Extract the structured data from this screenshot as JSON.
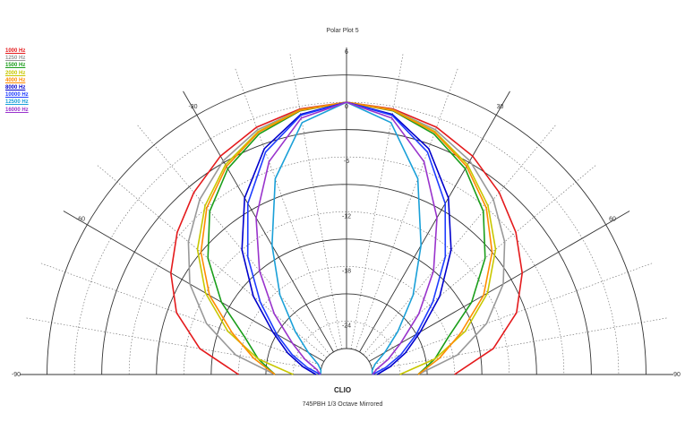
{
  "chart_data": {
    "type": "polar",
    "title": "Polar Plot 5",
    "brand": "CLIO",
    "caption": "745PBH   1/3 Octave   Mirrored",
    "mirrored": true,
    "angle_range_deg": [
      -90,
      90
    ],
    "angle_ticks": [
      "-90",
      "-60",
      "-30",
      "0",
      "30",
      "60",
      "90"
    ],
    "radial_range_db": [
      -27,
      6
    ],
    "radial_ticks": [
      "6",
      "0",
      "-6",
      "-12",
      "-18",
      "-24"
    ],
    "legend_position": "top-left",
    "angles_deg": [
      0,
      10,
      20,
      30,
      40,
      50,
      60,
      70,
      80,
      90
    ],
    "series": [
      {
        "name": "1000 Hz",
        "color": "#e41a1c",
        "values_db": [
          0,
          -0.3,
          -1.0,
          -2.2,
          -3.8,
          -5.6,
          -7.6,
          -10.0,
          -13.5,
          -18.0
        ]
      },
      {
        "name": "1250 Hz",
        "color": "#999999",
        "values_db": [
          0,
          -0.4,
          -1.3,
          -2.8,
          -4.8,
          -7.2,
          -10.0,
          -13.5,
          -17.5,
          -22.0
        ]
      },
      {
        "name": "1500 Hz",
        "color": "#1a9e1a",
        "values_db": [
          0,
          -0.5,
          -1.8,
          -3.8,
          -6.5,
          -10.0,
          -14.0,
          -18.0,
          -20.0,
          -22.0
        ]
      },
      {
        "name": "2000 Hz",
        "color": "#c8c800",
        "values_db": [
          0,
          -0.4,
          -1.5,
          -3.3,
          -5.7,
          -8.5,
          -12.0,
          -16.0,
          -20.0,
          -24.0
        ]
      },
      {
        "name": "4000 Hz",
        "color": "#ff8c00",
        "values_db": [
          0,
          -0.45,
          -1.6,
          -3.5,
          -6.0,
          -9.0,
          -12.5,
          -16.5,
          -19.5,
          -22.0
        ]
      },
      {
        "name": "8000 Hz",
        "color": "#0000cc",
        "values_db": [
          0,
          -0.9,
          -3.5,
          -7.5,
          -12.0,
          -16.5,
          -20.5,
          -23.0,
          -25.0,
          -26.5
        ]
      },
      {
        "name": "10000 Hz",
        "color": "#1e3cff",
        "values_db": [
          0,
          -1.0,
          -3.9,
          -8.2,
          -13.0,
          -17.5,
          -21.0,
          -23.5,
          -25.5,
          -27.0
        ]
      },
      {
        "name": "12500 Hz",
        "color": "#1aa0d8",
        "values_db": [
          0,
          -1.8,
          -7.0,
          -13.5,
          -18.5,
          -22.5,
          -25.0,
          -26.5,
          -27.0,
          -27.0
        ]
      },
      {
        "name": "16000 Hz",
        "color": "#9933cc",
        "values_db": [
          0,
          -1.3,
          -5.0,
          -10.0,
          -15.0,
          -19.5,
          -23.0,
          -25.0,
          -26.5,
          -27.0
        ]
      }
    ]
  }
}
